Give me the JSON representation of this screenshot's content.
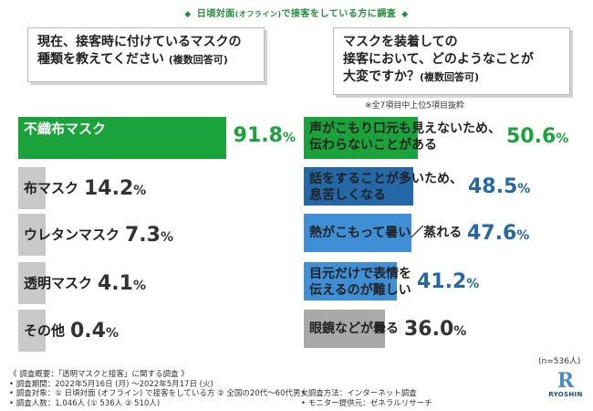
{
  "header": {
    "left_mark": "◆",
    "title_a": "日頃対面",
    "title_b": "(オフライン)",
    "title_c": "で接客をしている方に調査",
    "right_mark": "◆"
  },
  "questions": {
    "q1": {
      "line1": "現在、接客時に付けているマスクの",
      "line2": "種類を教えてください",
      "sub": "(複数回答可)"
    },
    "q2": {
      "line1": "マスクを装着しての",
      "line2": "接客において、どのようなことが",
      "line3": "大変ですか？",
      "sub": "(複数回答可)"
    }
  },
  "note": "※全7項目中上位5項目抜粋",
  "sample_size": "(n=536人)",
  "colors": {
    "green": "#1aa33a",
    "grey": "#c9c9c9",
    "blue_dark": "#2468a8",
    "blue_light": "#3e8fd6",
    "grey_dark": "#a9a9a9"
  },
  "chart_data": [
    {
      "type": "bar",
      "title": "現在、接客時に付けているマスクの種類を教えてください(複数回答可)",
      "categories": [
        "不織布マスク",
        "布マスク",
        "ウレタンマスク",
        "透明マスク",
        "その他"
      ],
      "values": [
        91.8,
        14.2,
        7.3,
        4.1,
        0.4
      ],
      "value_labels": [
        {
          "num": "91.8",
          "pct": "%"
        },
        {
          "num": "14.2",
          "pct": "%"
        },
        {
          "num": "7.3",
          "pct": "%"
        },
        {
          "num": "4.1",
          "pct": "%"
        },
        {
          "num": "0.4",
          "pct": "%"
        }
      ],
      "ylim": [
        0,
        100
      ],
      "orientation": "horizontal",
      "grid": false
    },
    {
      "type": "bar",
      "title": "マスクを装着しての接客において、どのようなことが大変ですか？(複数回答可)",
      "categories": [
        [
          "声がこもり口元も見えないため、",
          "伝わらないことがある"
        ],
        [
          "話をすることが多いため、",
          "息苦しくなる"
        ],
        [
          "熱がこもって暑い／蒸れる"
        ],
        [
          "目元だけで表情を",
          "伝えるのが難しい"
        ],
        [
          "眼鏡などが曇る"
        ]
      ],
      "values": [
        50.6,
        48.5,
        47.6,
        41.2,
        36.0
      ],
      "value_labels": [
        {
          "num": "50.6",
          "pct": "%"
        },
        {
          "num": "48.5",
          "pct": "%"
        },
        {
          "num": "47.6",
          "pct": "%"
        },
        {
          "num": "41.2",
          "pct": "%"
        },
        {
          "num": "36.0",
          "pct": "%"
        }
      ],
      "ylim": [
        0,
        100
      ],
      "orientation": "horizontal",
      "grid": false
    }
  ],
  "footer": {
    "lines": [
      "《 調査概要：「透明マスクと接客」に関する調査 》",
      "• 調査期間：2022年5月16日 (月) 〜2022年5月17日 (火)",
      "• 調査対象：① 日頃対面 (オフライン) で接客をしている方 ② 全国の20代〜60代男女",
      "• 調査人数：1,046人 (① 536人 ② 510人)"
    ],
    "right_lines": [
      "• 調査方法：インターネット調査",
      "• モニター提供元：ゼネラルリサーチ"
    ]
  },
  "logo": {
    "mark": "R",
    "name": "RYOSHIN"
  }
}
